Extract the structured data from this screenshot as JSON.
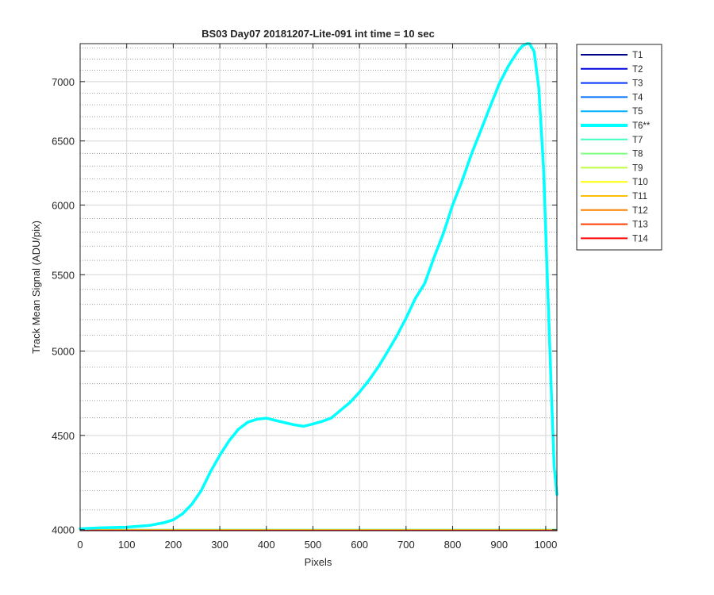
{
  "chart_data": {
    "type": "line",
    "title": "BS03 Day07 20181207-Lite-091 int time = 10 sec",
    "xlabel": "Pixels",
    "ylabel": "Track Mean Signal (ADU/pix)",
    "xlim": [
      0,
      1024
    ],
    "ylim": [
      3995,
      7340
    ],
    "y_scale": "log",
    "grid": true,
    "minor_grid": true,
    "legend_position": "outside-right",
    "x_ticks": [
      0,
      100,
      200,
      300,
      400,
      500,
      600,
      700,
      800,
      900,
      1000
    ],
    "x_tick_labels": [
      "0",
      "100",
      "200",
      "300",
      "400",
      "500",
      "600",
      "700",
      "800",
      "900",
      "1000"
    ],
    "y_ticks": [
      4000,
      4500,
      5000,
      5500,
      6000,
      6500,
      7000
    ],
    "y_tick_labels": [
      "4000",
      "4500",
      "5000",
      "5500",
      "6000",
      "6500",
      "7000"
    ],
    "series": [
      {
        "name": "T1",
        "color": "#00008F",
        "x": [
          0,
          1024
        ],
        "y": [
          3998,
          3998
        ]
      },
      {
        "name": "T2",
        "color": "#0000DF",
        "x": [
          0,
          1024
        ],
        "y": [
          3998,
          3998
        ]
      },
      {
        "name": "T3",
        "color": "#0030FF",
        "x": [
          0,
          1024
        ],
        "y": [
          3998,
          3998
        ]
      },
      {
        "name": "T4",
        "color": "#0070FF",
        "x": [
          0,
          1024
        ],
        "y": [
          3998,
          3998
        ]
      },
      {
        "name": "T5",
        "color": "#00B0FF",
        "x": [
          0,
          1024
        ],
        "y": [
          3998,
          3998
        ]
      },
      {
        "name": "T6**",
        "color": "#00FFFF",
        "highlight": true,
        "x": [
          0,
          50,
          100,
          150,
          180,
          200,
          220,
          240,
          260,
          280,
          300,
          320,
          340,
          360,
          380,
          400,
          420,
          440,
          460,
          480,
          500,
          520,
          540,
          560,
          580,
          600,
          620,
          640,
          660,
          680,
          700,
          720,
          740,
          760,
          780,
          800,
          820,
          840,
          860,
          880,
          900,
          920,
          940,
          950,
          960,
          965,
          975,
          985,
          995,
          1005,
          1012,
          1018,
          1024
        ],
        "y": [
          4005,
          4010,
          4013,
          4022,
          4035,
          4050,
          4080,
          4130,
          4200,
          4300,
          4390,
          4470,
          4535,
          4575,
          4592,
          4598,
          4585,
          4572,
          4560,
          4552,
          4565,
          4580,
          4600,
          4645,
          4690,
          4750,
          4820,
          4900,
          4995,
          5095,
          5210,
          5340,
          5440,
          5620,
          5790,
          6000,
          6180,
          6390,
          6580,
          6780,
          6980,
          7140,
          7270,
          7320,
          7340,
          7340,
          7270,
          6950,
          6300,
          5350,
          4750,
          4330,
          4180
        ]
      },
      {
        "name": "T7",
        "color": "#40FFBF",
        "x": [
          0,
          1024
        ],
        "y": [
          4002,
          4002
        ]
      },
      {
        "name": "T8",
        "color": "#80FF80",
        "x": [
          0,
          1024
        ],
        "y": [
          4001,
          4001
        ]
      },
      {
        "name": "T9",
        "color": "#BFFF40",
        "x": [
          0,
          1024
        ],
        "y": [
          4000,
          4000
        ]
      },
      {
        "name": "T10",
        "color": "#FFFF00",
        "x": [
          0,
          1024
        ],
        "y": [
          3999,
          3999
        ]
      },
      {
        "name": "T11",
        "color": "#FFBF00",
        "x": [
          0,
          1024
        ],
        "y": [
          3998,
          3998
        ]
      },
      {
        "name": "T12",
        "color": "#FF8000",
        "x": [
          0,
          1024
        ],
        "y": [
          3998,
          3998
        ]
      },
      {
        "name": "T13",
        "color": "#FF4000",
        "x": [
          0,
          1024
        ],
        "y": [
          3997,
          3997
        ]
      },
      {
        "name": "T14",
        "color": "#FF0000",
        "x": [
          0,
          1024
        ],
        "y": [
          3997,
          3997
        ]
      }
    ]
  }
}
